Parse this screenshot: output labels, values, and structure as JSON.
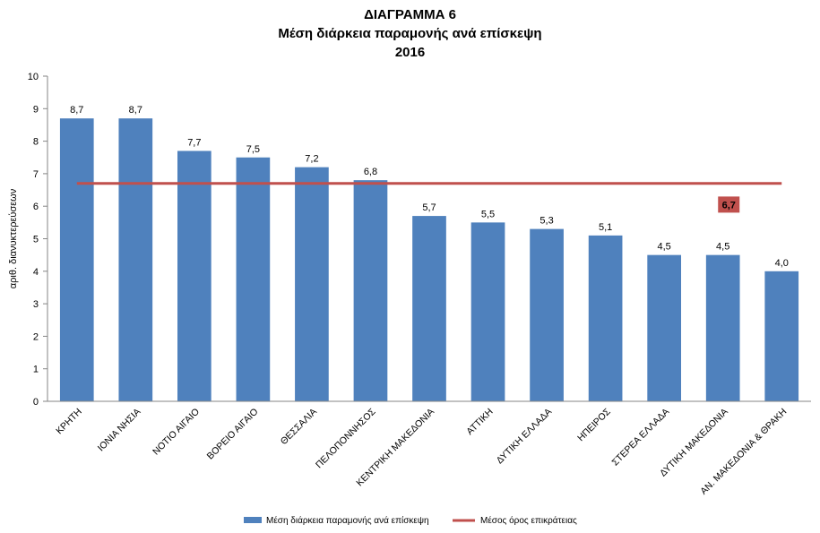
{
  "chart_data": {
    "type": "bar",
    "title_lines": [
      "ΔΙΑΓΡΑΜΜΑ 6",
      "Μέση διάρκεια παραμονής ανά επίσκεψη",
      "2016"
    ],
    "ylabel": "αριθ. διανυκτερεύσεων",
    "xlabel": "",
    "ylim": [
      0,
      10
    ],
    "yticks": [
      0,
      1,
      2,
      3,
      4,
      5,
      6,
      7,
      8,
      9,
      10
    ],
    "categories": [
      "ΚΡΗΤΗ",
      "ΙΟΝΙΑ ΝΗΣΙΑ",
      "ΝΟΤΙΟ ΑΙΓΑΙΟ",
      "ΒΟΡΕΙΟ ΑΙΓΑΙΟ",
      "ΘΕΣΣΑΛΙΑ",
      "ΠΕΛΟΠΟΝΝΗΣΟΣ",
      "ΚΕΝΤΡΙΚΗ ΜΑΚΕΔΟΝΙΑ",
      "ΑΤΤΙΚΗ",
      "ΔΥΤΙΚΗ ΕΛΛΑΔΑ",
      "ΗΠΕΙΡΟΣ",
      "ΣΤΕΡΕΑ ΕΛΛΑΔΑ",
      "ΔΥΤΙΚΗ ΜΑΚΕΔΟΝΙΑ",
      "ΑΝ. ΜΑΚΕΔΟΝΙΑ & ΘΡΑΚΗ"
    ],
    "series": [
      {
        "name": "Μέση διάρκεια παραμονής ανά επίσκεψη",
        "kind": "bar",
        "color": "#4F81BD",
        "values": [
          8.7,
          8.7,
          7.7,
          7.5,
          7.2,
          6.8,
          5.7,
          5.5,
          5.3,
          5.1,
          4.5,
          4.5,
          4.0
        ],
        "labels": [
          "8,7",
          "8,7",
          "7,7",
          "7,5",
          "7,2",
          "6,8",
          "5,7",
          "5,5",
          "5,3",
          "5,1",
          "4,5",
          "4,5",
          "4,0"
        ]
      },
      {
        "name": "Μέσος όρος επικράτειας",
        "kind": "line",
        "color": "#C0504D",
        "value": 6.7,
        "label": "6,7"
      }
    ],
    "legend_position": "bottom",
    "grid": false
  }
}
